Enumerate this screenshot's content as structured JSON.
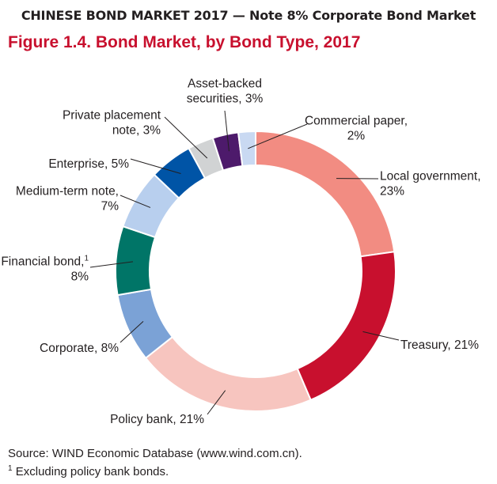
{
  "header": {
    "banner": "CHINESE BOND MARKET 2017 — Note 8% Corporate Bond Market",
    "figure_title": "Figure 1.4. Bond Market, by Bond Type, 2017"
  },
  "chart_data": {
    "type": "pie",
    "variant": "donut",
    "title": "Figure 1.4. Bond Market, by Bond Type, 2017",
    "start_angle_deg": 0,
    "direction": "clockwise",
    "slices": [
      {
        "name": "Local government",
        "value": 23,
        "color": "#f28c82",
        "label": [
          "Local government,",
          "23%"
        ]
      },
      {
        "name": "Treasury",
        "value": 21,
        "color": "#c8102e",
        "label": [
          "Treasury, 21%"
        ]
      },
      {
        "name": "Policy bank",
        "value": 21,
        "color": "#f7c5bf",
        "label": [
          "Policy bank, 21%"
        ]
      },
      {
        "name": "Corporate",
        "value": 8,
        "color": "#7ba2d6",
        "label": [
          "Corporate, 8%"
        ]
      },
      {
        "name": "Financial bond",
        "value": 8,
        "color": "#007567",
        "label": [
          "Financial bond,",
          "8%"
        ],
        "footnote": "1"
      },
      {
        "name": "Medium-term note",
        "value": 7,
        "color": "#b8cfee",
        "label": [
          "Medium-term note,",
          "7%"
        ]
      },
      {
        "name": "Enterprise",
        "value": 5,
        "color": "#0054a6",
        "label": [
          "Enterprise, 5%"
        ]
      },
      {
        "name": "Private placement note",
        "value": 3,
        "color": "#d1d3d4",
        "label": [
          "Private placement",
          "note, 3%"
        ]
      },
      {
        "name": "Asset-backed securities",
        "value": 3,
        "color": "#4d1a6b",
        "label": [
          "Asset-backed",
          "securities, 3%"
        ]
      },
      {
        "name": "Commercial paper",
        "value": 2,
        "color": "#c9d9f2",
        "label": [
          "Commercial paper,",
          "2%"
        ]
      }
    ]
  },
  "footer": {
    "source": "Source: WIND Economic Database (www.wind.com.cn).",
    "note_marker": "1",
    "note": " Excluding policy bank bonds."
  }
}
